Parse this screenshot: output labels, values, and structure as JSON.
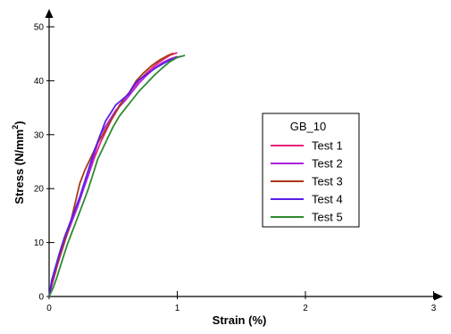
{
  "chart_data": {
    "type": "line",
    "xlabel": "Strain (%)",
    "ylabel_main": "Stress (N/mm",
    "ylabel_sup": "2",
    "ylabel_close": ")",
    "xlim": [
      0,
      3
    ],
    "ylim": [
      0,
      50
    ],
    "x_ticks": [
      0,
      1,
      2,
      3
    ],
    "y_ticks": [
      0,
      10,
      20,
      30,
      40,
      50
    ],
    "grid": false,
    "legend_title": "GB_10",
    "legend_position": "right",
    "series": [
      {
        "name": "Test 1",
        "color": "#e8217a",
        "x": [
          0,
          0.02,
          0.05,
          0.08,
          0.12,
          0.16,
          0.2,
          0.25,
          0.3,
          0.35,
          0.4,
          0.45,
          0.5,
          0.55,
          0.6,
          0.65,
          0.7,
          0.75,
          0.8,
          0.85,
          0.9,
          0.95,
          1.0
        ],
        "y": [
          0,
          2,
          4.5,
          7.5,
          10.5,
          13,
          15.5,
          19,
          22,
          25.5,
          28.5,
          31,
          33.5,
          35.5,
          37,
          38.5,
          40,
          41.2,
          42.3,
          43.3,
          44.1,
          44.8,
          45.2
        ]
      },
      {
        "name": "Test 2",
        "color": "#b020e0",
        "x": [
          0,
          0.03,
          0.06,
          0.1,
          0.14,
          0.18,
          0.22,
          0.27,
          0.32,
          0.36,
          0.4,
          0.44,
          0.48,
          0.52,
          0.56,
          0.6,
          0.65,
          0.7,
          0.76,
          0.82,
          0.88,
          0.94,
          1.0
        ],
        "y": [
          0,
          3,
          5.5,
          8.5,
          11.5,
          14,
          16.5,
          20,
          23.5,
          27,
          30,
          31.5,
          33,
          34.5,
          35.5,
          36.5,
          38,
          39.5,
          41,
          42.3,
          43.3,
          44,
          44.5
        ]
      },
      {
        "name": "Test 3",
        "color": "#a83a14",
        "x": [
          0,
          0.02,
          0.05,
          0.09,
          0.13,
          0.17,
          0.21,
          0.24,
          0.28,
          0.33,
          0.38,
          0.43,
          0.48,
          0.53,
          0.58,
          0.63,
          0.68,
          0.74,
          0.8,
          0.86,
          0.92,
          0.97
        ],
        "y": [
          0,
          2.5,
          5,
          8,
          11,
          14,
          18,
          21,
          23.5,
          26,
          28.5,
          30.5,
          32.5,
          34.5,
          36.5,
          38,
          40,
          41.5,
          42.8,
          43.8,
          44.6,
          45.1
        ]
      },
      {
        "name": "Test 4",
        "color": "#5a1fe8",
        "x": [
          0,
          0.02,
          0.05,
          0.08,
          0.12,
          0.16,
          0.2,
          0.24,
          0.28,
          0.32,
          0.36,
          0.4,
          0.44,
          0.48,
          0.52,
          0.57,
          0.62,
          0.67,
          0.72,
          0.78,
          0.84,
          0.9,
          0.96,
          1.02
        ],
        "y": [
          0,
          3,
          5.5,
          8,
          11,
          13.5,
          16,
          18.5,
          21.5,
          24.5,
          27.5,
          30,
          32.5,
          34,
          35.5,
          36.5,
          37.5,
          39.5,
          40.5,
          41.5,
          42.5,
          43.3,
          44,
          44.5
        ]
      },
      {
        "name": "Test 5",
        "color": "#2e8b2e",
        "x": [
          0,
          0.03,
          0.06,
          0.1,
          0.14,
          0.18,
          0.22,
          0.26,
          0.3,
          0.34,
          0.38,
          0.42,
          0.46,
          0.5,
          0.55,
          0.6,
          0.65,
          0.7,
          0.76,
          0.82,
          0.88,
          0.94,
          1.0,
          1.06
        ],
        "y": [
          0,
          1.5,
          3.5,
          6.5,
          9.5,
          12,
          14.5,
          17,
          19.5,
          22.5,
          25.5,
          27.5,
          29.5,
          31.5,
          33.5,
          35,
          36.5,
          38,
          39.5,
          41,
          42.3,
          43.5,
          44.3,
          44.7
        ]
      }
    ]
  }
}
